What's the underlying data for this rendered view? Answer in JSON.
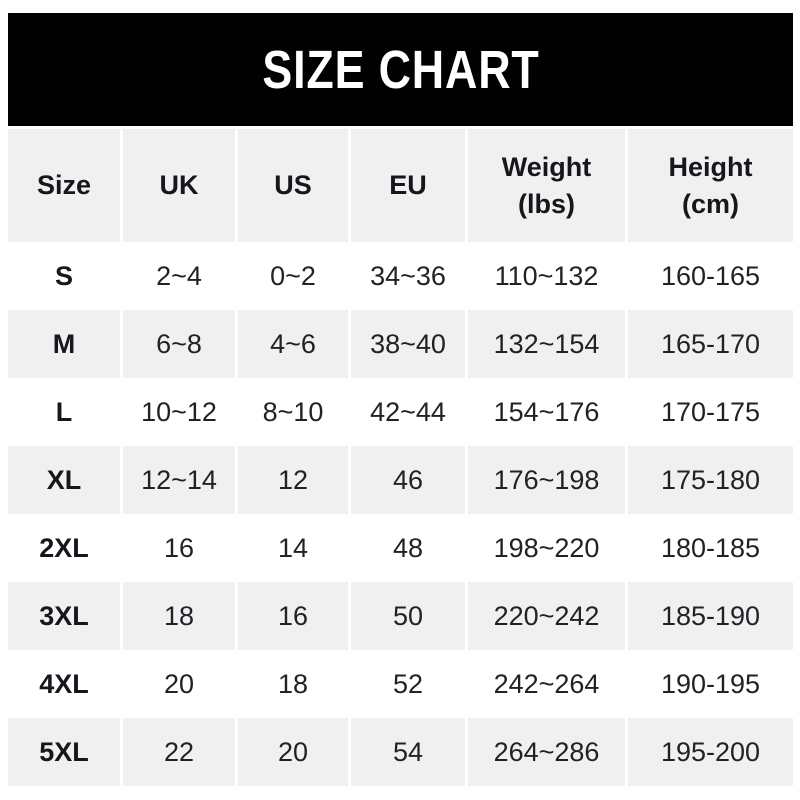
{
  "banner": {
    "bg_color": "#010101",
    "text_color": "#ffffff"
  },
  "colors": {
    "row_alt_bg": "#f0f0f0",
    "row_bg": "#ffffff",
    "divider": "#ffffff",
    "text": "#212227",
    "header_text": "#15171c"
  },
  "chart_data": {
    "type": "table",
    "title": "SIZE CHART",
    "columns": [
      "Size",
      "UK",
      "US",
      "EU",
      "Weight\n(lbs)",
      "Height\n(cm)"
    ],
    "column_keys": [
      "size",
      "uk",
      "us",
      "eu",
      "weight-lbs",
      "height-cm"
    ],
    "rows": [
      [
        "S",
        "2~4",
        "0~2",
        "34~36",
        "110~132",
        "160-165"
      ],
      [
        "M",
        "6~8",
        "4~6",
        "38~40",
        "132~154",
        "165-170"
      ],
      [
        "L",
        "10~12",
        "8~10",
        "42~44",
        "154~176",
        "170-175"
      ],
      [
        "XL",
        "12~14",
        "12",
        "46",
        "176~198",
        "175-180"
      ],
      [
        "2XL",
        "16",
        "14",
        "48",
        "198~220",
        "180-185"
      ],
      [
        "3XL",
        "18",
        "16",
        "50",
        "220~242",
        "185-190"
      ],
      [
        "4XL",
        "20",
        "18",
        "52",
        "242~264",
        "190-195"
      ],
      [
        "5XL",
        "22",
        "20",
        "54",
        "264~286",
        "195-200"
      ]
    ]
  }
}
